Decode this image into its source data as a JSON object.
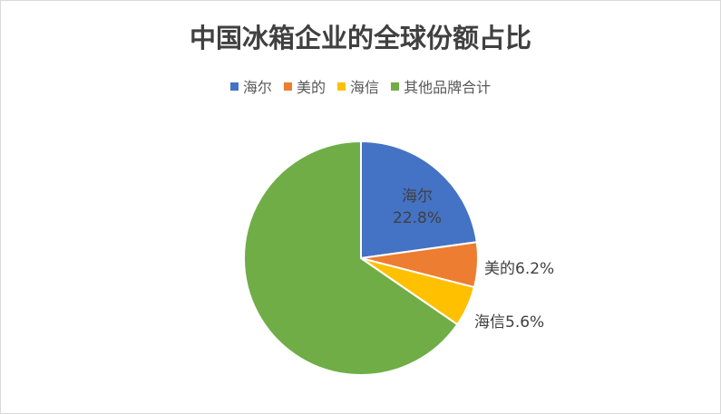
{
  "chart_data": {
    "type": "pie",
    "title": "中国冰箱企业的全球份额占比",
    "legend_position": "top",
    "categories": [
      "海尔",
      "美的",
      "海信",
      "其他品牌合计"
    ],
    "values": [
      22.8,
      6.2,
      5.6,
      65.4
    ],
    "data_labels": [
      "22.8%",
      "6.2%",
      "5.6%",
      ""
    ],
    "colors": [
      "#4472C4",
      "#ED7D31",
      "#FFC000",
      "#70AD47"
    ],
    "start_angle": "12 o'clock",
    "direction": "clockwise"
  }
}
